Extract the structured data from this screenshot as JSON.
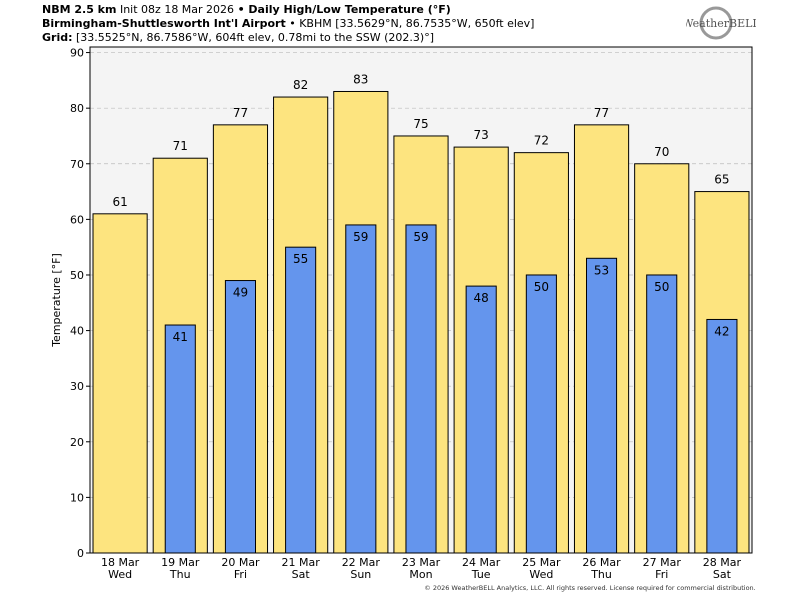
{
  "header": {
    "model": "NBM 2.5 km",
    "init": "Init 08z 18 Mar 2026",
    "product": "• Daily High/Low Temperature (°F)",
    "station": "Birmingham-Shuttlesworth Int'l Airport",
    "station_info": "• KBHM [33.5629°N, 86.7535°W, 650ft elev]",
    "grid_label": "Grid:",
    "grid_info": "[33.5525°N, 86.7586°W, 604ft elev, 0.78mi to the SSW (202.3)°]",
    "logo": "WeatherBELL"
  },
  "footer": "© 2026 WeatherBELL Analytics, LLC. All rights reserved. License required for commercial distribution.",
  "chart_data": {
    "type": "bar",
    "y_label": "Temperature [°F]",
    "categories": [
      "18 Mar",
      "19 Mar",
      "20 Mar",
      "21 Mar",
      "22 Mar",
      "23 Mar",
      "24 Mar",
      "25 Mar",
      "26 Mar",
      "27 Mar",
      "28 Mar"
    ],
    "weekdays": [
      "Wed",
      "Thu",
      "Fri",
      "Sat",
      "Sun",
      "Mon",
      "Tue",
      "Wed",
      "Thu",
      "Fri",
      "Sat"
    ],
    "series": [
      {
        "color": "#fde47f",
        "values": [
          61,
          71,
          77,
          82,
          83,
          75,
          73,
          72,
          77,
          70,
          65
        ]
      },
      {
        "color": "#6495ed",
        "values": [
          null,
          41,
          49,
          55,
          59,
          59,
          48,
          50,
          53,
          50,
          42
        ]
      }
    ],
    "ylim": [
      0,
      91
    ],
    "yticks": [
      0,
      10,
      20,
      30,
      40,
      50,
      60,
      70,
      80,
      90
    ],
    "grid": true
  }
}
